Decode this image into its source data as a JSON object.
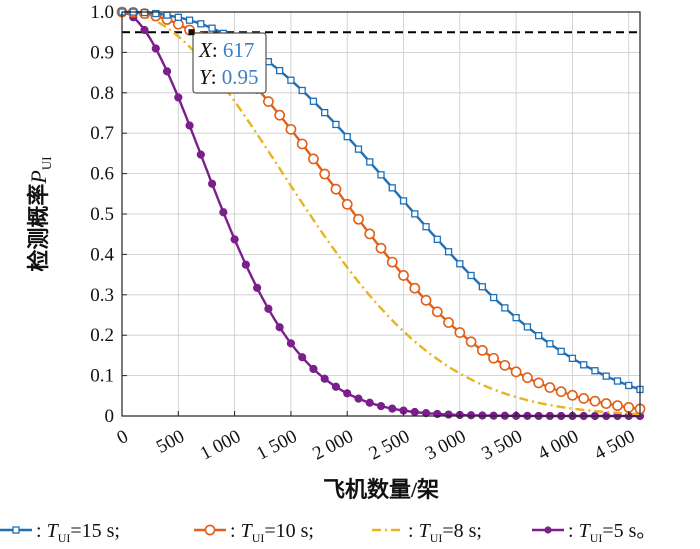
{
  "chart_data": {
    "type": "line",
    "xlabel": "飞机数量/架",
    "ylabel": "检测概率",
    "ylabel_symbol": "P",
    "ylabel_subscript": "UI",
    "xlim": [
      0,
      4600
    ],
    "ylim": [
      0,
      1.0
    ],
    "xticks": [
      0,
      500,
      1000,
      1500,
      2000,
      2500,
      3000,
      3500,
      4000,
      4500
    ],
    "xtick_labels": [
      "0",
      "500",
      "1 000",
      "1 500",
      "2 000",
      "2 500",
      "3 000",
      "3 500",
      "4 000",
      "4 500"
    ],
    "yticks": [
      0,
      0.1,
      0.2,
      0.3,
      0.4,
      0.5,
      0.6,
      0.7,
      0.8,
      0.9,
      1.0
    ],
    "ytick_labels": [
      "0",
      "0.1",
      "0.2",
      "0.3",
      "0.4",
      "0.5",
      "0.6",
      "0.7",
      "0.8",
      "0.9",
      "1.0"
    ],
    "reference_line": {
      "y": 0.95,
      "style": "dashed",
      "color": "#000000"
    },
    "datatip": {
      "x_label": "X",
      "x_value": "617",
      "y_label": "Y",
      "y_value": "0.95",
      "x": 617,
      "y": 0.95
    },
    "series": [
      {
        "name": "T_UI=15 s",
        "color": "#1f6fb5",
        "marker": "square",
        "dash": "solid",
        "k": 0.00033,
        "p": 2.4
      },
      {
        "name": "T_UI=10 s",
        "color": "#e0601b",
        "marker": "circle",
        "dash": "solid",
        "k": 0.00041,
        "p": 2.2
      },
      {
        "name": "T_UI=8 s",
        "color": "#e9b31d",
        "marker": "none",
        "dash": "dashdot",
        "k": 0.0005,
        "p": 2.0
      },
      {
        "name": "T_UI=5 s",
        "color": "#7a1f8c",
        "marker": "dot",
        "dash": "solid",
        "k": 0.0009,
        "p": 1.8
      }
    ]
  },
  "legend": {
    "items": [
      {
        "sep": ": ",
        "sym": "T",
        "sub": "UI",
        "rest": "=15 s;"
      },
      {
        "sep": ": ",
        "sym": "T",
        "sub": "UI",
        "rest": "=10 s;"
      },
      {
        "sep": ": ",
        "sym": "T",
        "sub": "UI",
        "rest": "=8 s;"
      },
      {
        "sep": ": ",
        "sym": "T",
        "sub": "UI",
        "rest": "=5 s。"
      }
    ]
  }
}
